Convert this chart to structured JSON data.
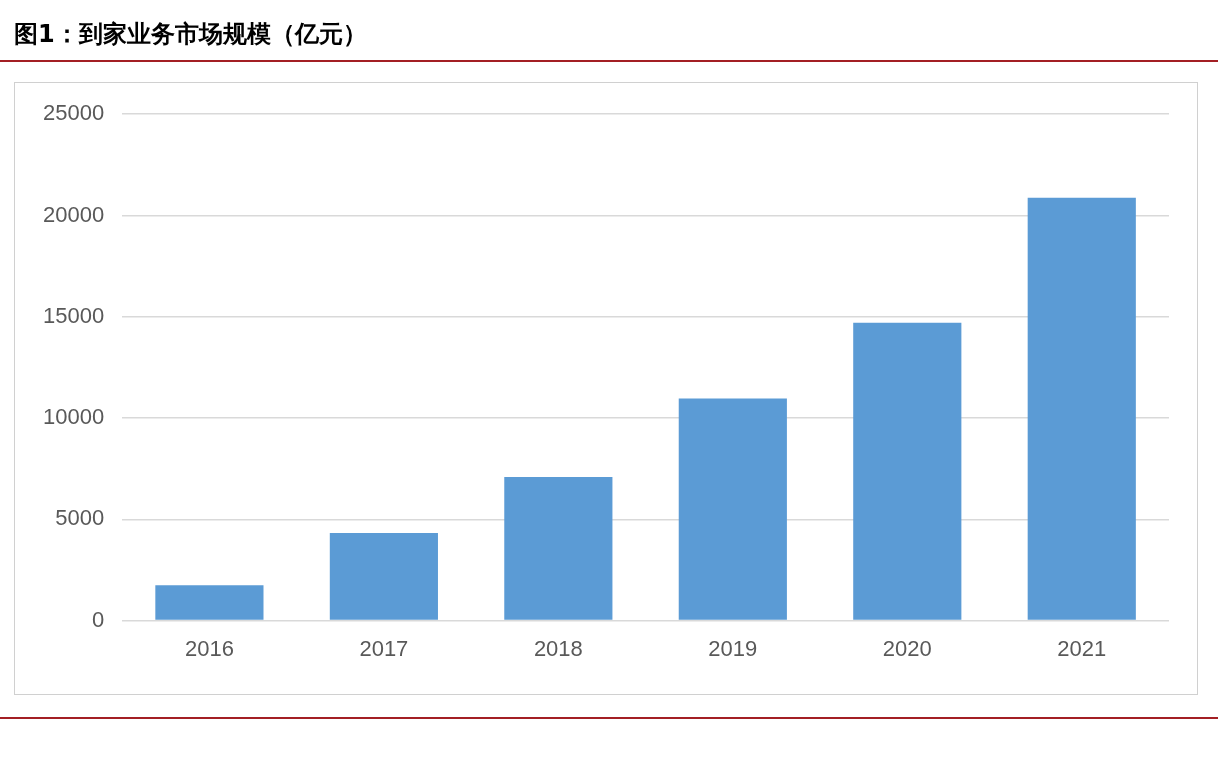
{
  "chart_data": {
    "type": "bar",
    "title": "图1：到家业务市场规模（亿元）",
    "categories": [
      "2016",
      "2017",
      "2018",
      "2019",
      "2020",
      "2021"
    ],
    "values": [
      1750,
      4320,
      7090,
      10970,
      14710,
      20870
    ],
    "color": "#5b9bd5",
    "ylim": [
      0,
      25000
    ],
    "yticks": [
      0,
      5000,
      10000,
      15000,
      20000,
      25000
    ],
    "grid": "y",
    "legend": false
  }
}
